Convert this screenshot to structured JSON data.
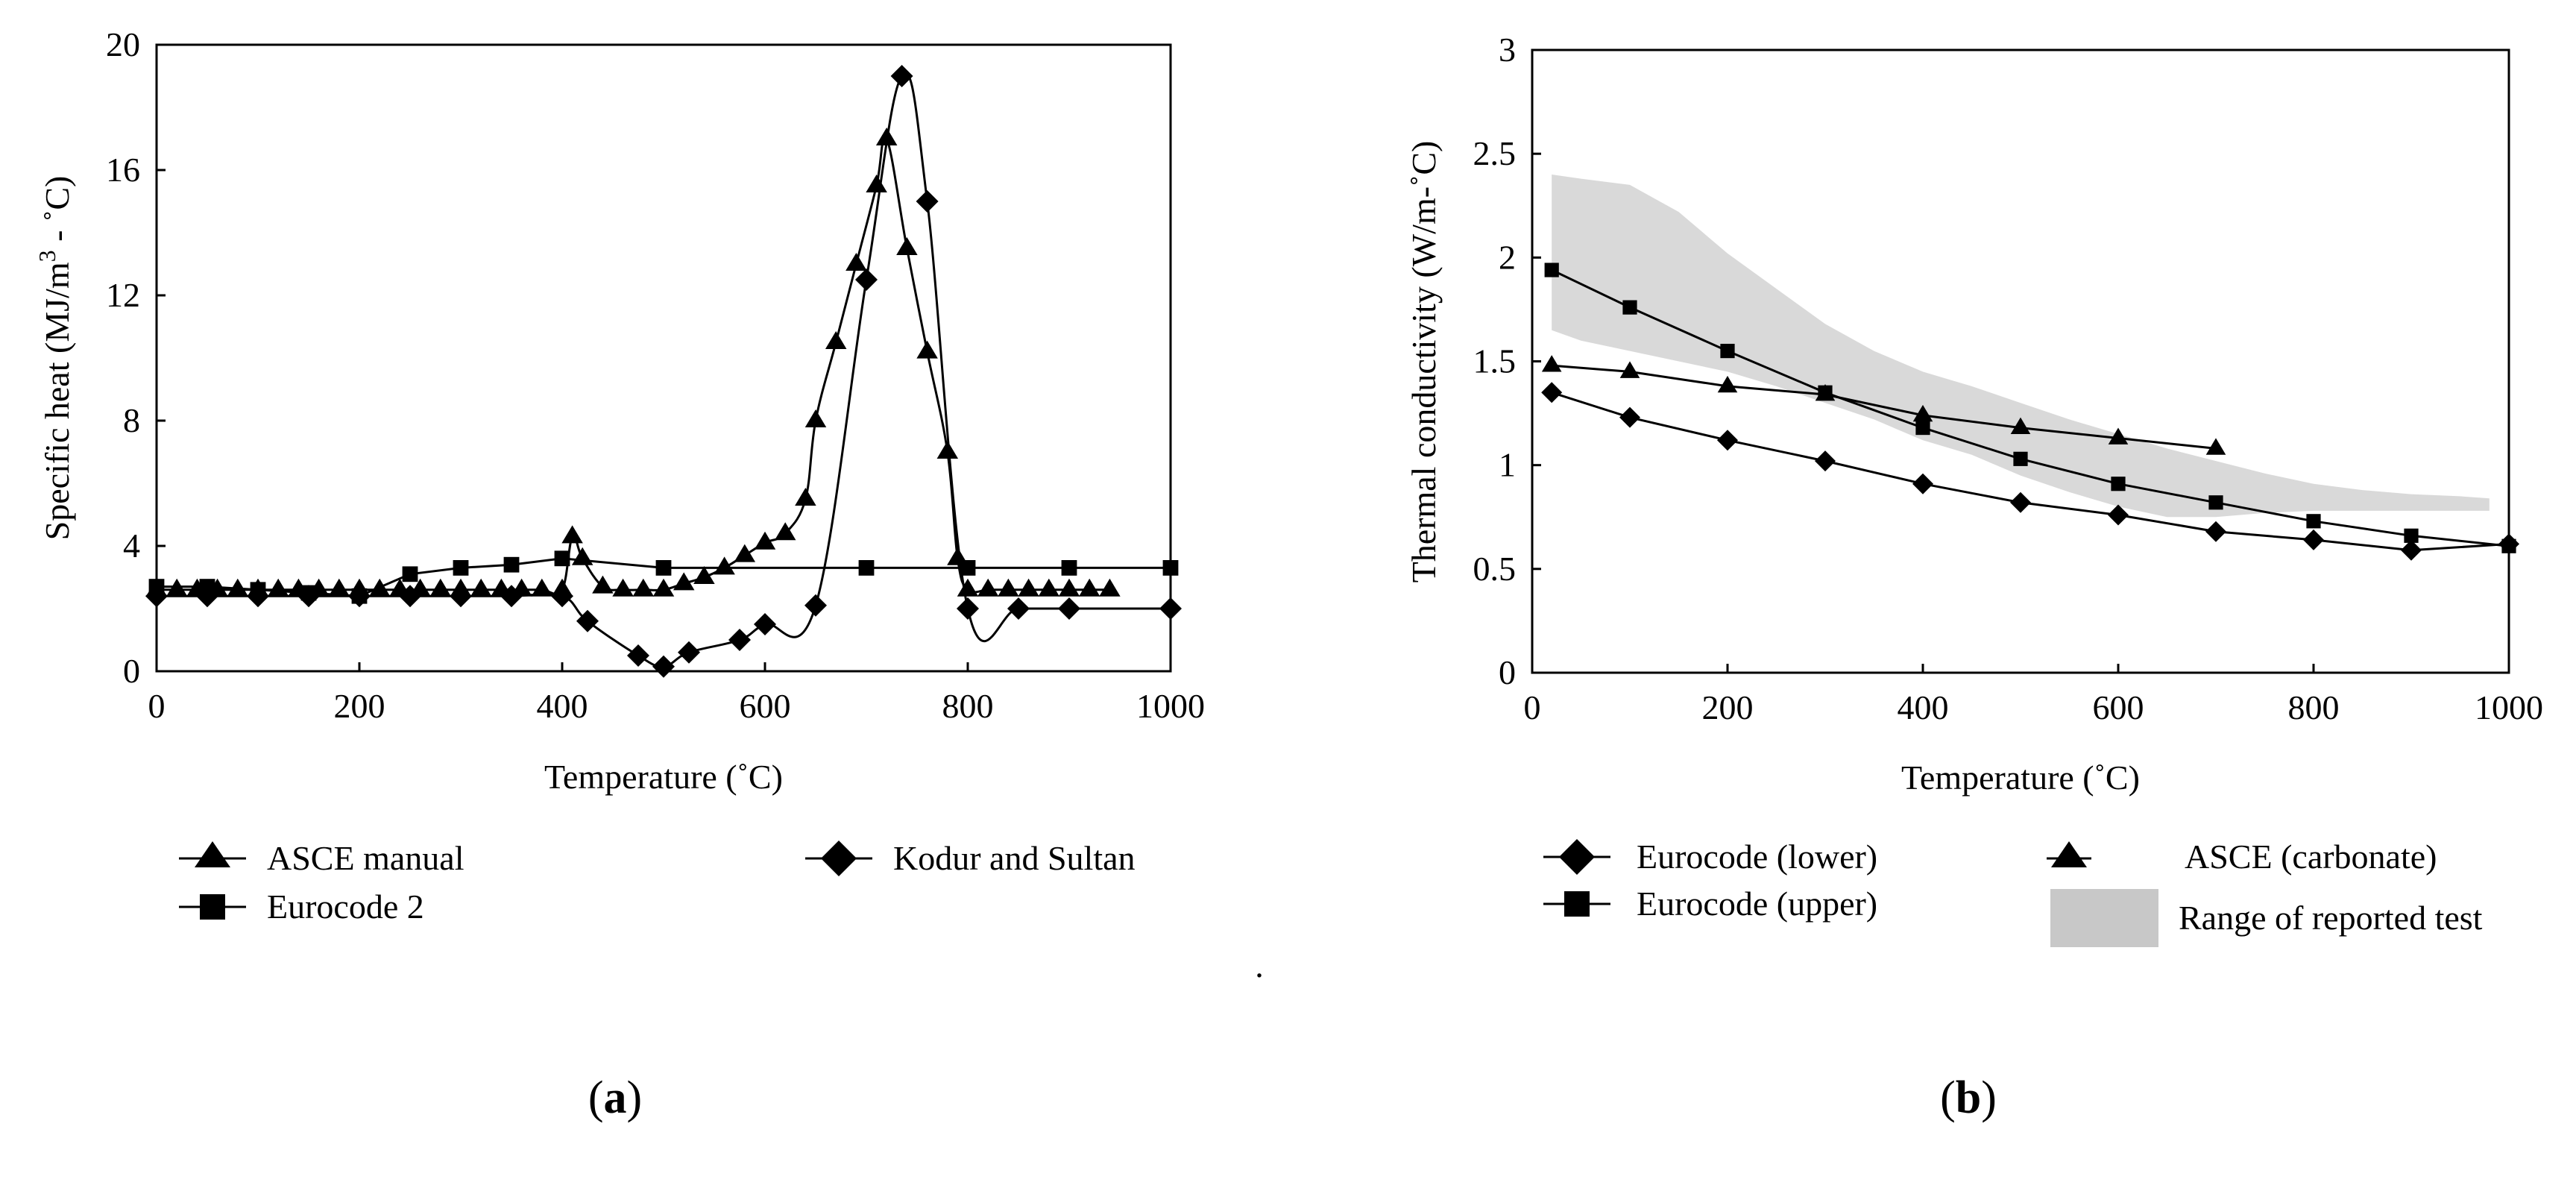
{
  "chart_data": [
    {
      "panel": "(a)",
      "type": "line",
      "xlabel": "Temperature (˚C)",
      "ylabel_parts": [
        "Specific heat (MJ/m",
        "3",
        " - ˚C)"
      ],
      "xlim": [
        0,
        1000
      ],
      "ylim": [
        0,
        20
      ],
      "xticks": [
        0,
        200,
        400,
        600,
        800,
        1000
      ],
      "yticks": [
        0,
        4,
        8,
        12,
        16,
        20
      ],
      "grid": false,
      "series": [
        {
          "name": "ASCE manual",
          "marker": "triangle",
          "smooth": true,
          "x": [
            0,
            20,
            40,
            60,
            80,
            100,
            120,
            140,
            160,
            180,
            200,
            220,
            240,
            260,
            280,
            300,
            320,
            340,
            360,
            380,
            400,
            410,
            420,
            440,
            460,
            480,
            500,
            520,
            540,
            560,
            580,
            600,
            620,
            640,
            650,
            670,
            690,
            710,
            720,
            740,
            760,
            780,
            790,
            800,
            820,
            840,
            860,
            880,
            900,
            920,
            940
          ],
          "y": [
            2.6,
            2.6,
            2.6,
            2.6,
            2.6,
            2.6,
            2.6,
            2.6,
            2.6,
            2.6,
            2.6,
            2.6,
            2.6,
            2.6,
            2.6,
            2.6,
            2.6,
            2.6,
            2.6,
            2.6,
            2.6,
            4.3,
            3.6,
            2.7,
            2.6,
            2.6,
            2.6,
            2.8,
            3.0,
            3.3,
            3.7,
            4.1,
            4.4,
            5.5,
            8.0,
            10.5,
            13.0,
            15.5,
            17.0,
            13.5,
            10.2,
            7.0,
            3.6,
            2.6,
            2.6,
            2.6,
            2.6,
            2.6,
            2.6,
            2.6,
            2.6
          ]
        },
        {
          "name": "Eurocode 2",
          "marker": "square",
          "smooth": false,
          "x": [
            0,
            50,
            100,
            150,
            200,
            250,
            300,
            350,
            400,
            500,
            700,
            800,
            900,
            1000
          ],
          "y": [
            2.7,
            2.7,
            2.6,
            2.5,
            2.4,
            3.1,
            3.3,
            3.4,
            3.6,
            3.3,
            3.3,
            3.3,
            3.3,
            3.3
          ]
        },
        {
          "name": "Kodur and Sultan",
          "marker": "diamond",
          "smooth": true,
          "x": [
            0,
            50,
            100,
            150,
            200,
            250,
            300,
            350,
            400,
            425,
            475,
            500,
            525,
            575,
            600,
            650,
            700,
            735,
            760,
            800,
            850,
            900,
            1000
          ],
          "y": [
            2.4,
            2.4,
            2.4,
            2.4,
            2.4,
            2.4,
            2.4,
            2.4,
            2.4,
            1.6,
            0.5,
            0.15,
            0.6,
            1.0,
            1.5,
            2.1,
            12.5,
            19.0,
            15.0,
            2.0,
            2.0,
            2.0,
            2.0
          ]
        }
      ],
      "legend": [
        {
          "label": "ASCE manual",
          "marker": "triangle"
        },
        {
          "label": "Eurocode 2",
          "marker": "square"
        },
        {
          "label": "Kodur and Sultan",
          "marker": "diamond"
        }
      ]
    },
    {
      "panel": "(b)",
      "type": "line",
      "xlabel": "Temperature (˚C)",
      "ylabel": "Thermal conductivity (W/m-˚C)",
      "xlim": [
        0,
        1000
      ],
      "ylim": [
        0,
        3
      ],
      "xticks": [
        0,
        200,
        400,
        600,
        800,
        1000
      ],
      "yticks": [
        0,
        0.5,
        1,
        1.5,
        2,
        2.5,
        3
      ],
      "grid": false,
      "range_band": {
        "name": "Range of reported test",
        "color": "#d9d9d9",
        "upper": [
          [
            20,
            2.4
          ],
          [
            50,
            2.38
          ],
          [
            100,
            2.35
          ],
          [
            150,
            2.22
          ],
          [
            200,
            2.02
          ],
          [
            250,
            1.85
          ],
          [
            300,
            1.68
          ],
          [
            350,
            1.55
          ],
          [
            400,
            1.45
          ],
          [
            450,
            1.38
          ],
          [
            500,
            1.3
          ],
          [
            550,
            1.22
          ],
          [
            600,
            1.15
          ],
          [
            650,
            1.08
          ],
          [
            700,
            1.02
          ],
          [
            750,
            0.96
          ],
          [
            800,
            0.91
          ],
          [
            850,
            0.88
          ],
          [
            900,
            0.86
          ],
          [
            950,
            0.85
          ],
          [
            980,
            0.84
          ]
        ],
        "lower": [
          [
            980,
            0.78
          ],
          [
            950,
            0.78
          ],
          [
            900,
            0.78
          ],
          [
            850,
            0.78
          ],
          [
            800,
            0.78
          ],
          [
            750,
            0.77
          ],
          [
            700,
            0.75
          ],
          [
            650,
            0.75
          ],
          [
            600,
            0.8
          ],
          [
            550,
            0.87
          ],
          [
            500,
            0.95
          ],
          [
            450,
            1.05
          ],
          [
            400,
            1.12
          ],
          [
            350,
            1.22
          ],
          [
            300,
            1.3
          ],
          [
            250,
            1.38
          ],
          [
            200,
            1.45
          ],
          [
            150,
            1.5
          ],
          [
            100,
            1.55
          ],
          [
            50,
            1.6
          ],
          [
            20,
            1.65
          ]
        ]
      },
      "series": [
        {
          "name": "Eurocode (lower)",
          "marker": "diamond",
          "x": [
            20,
            100,
            200,
            300,
            400,
            500,
            600,
            700,
            800,
            900,
            1000
          ],
          "y": [
            1.35,
            1.23,
            1.12,
            1.02,
            0.91,
            0.82,
            0.76,
            0.68,
            0.64,
            0.59,
            0.62
          ]
        },
        {
          "name": "Eurocode (upper)",
          "marker": "square",
          "x": [
            20,
            100,
            200,
            300,
            400,
            500,
            600,
            700,
            800,
            900,
            1000
          ],
          "y": [
            1.94,
            1.76,
            1.55,
            1.35,
            1.18,
            1.03,
            0.91,
            0.82,
            0.73,
            0.66,
            0.61
          ]
        },
        {
          "name": "ASCE (carbonate)",
          "marker": "triangle",
          "x": [
            20,
            100,
            200,
            300,
            400,
            500,
            600,
            700
          ],
          "y": [
            1.48,
            1.45,
            1.38,
            1.34,
            1.24,
            1.18,
            1.13,
            1.08
          ]
        }
      ],
      "legend": [
        {
          "label": "Eurocode (lower)",
          "marker": "diamond"
        },
        {
          "label": "Eurocode (upper)",
          "marker": "square"
        },
        {
          "label": "ASCE (carbonate)",
          "marker": "triangle"
        },
        {
          "label": "Range of reported test",
          "marker": "band"
        }
      ]
    }
  ],
  "separator_dot": ".",
  "panel_labels": [
    {
      "open": "(",
      "letter": "a",
      "close": ")"
    },
    {
      "open": "(",
      "letter": "b",
      "close": ")"
    }
  ]
}
